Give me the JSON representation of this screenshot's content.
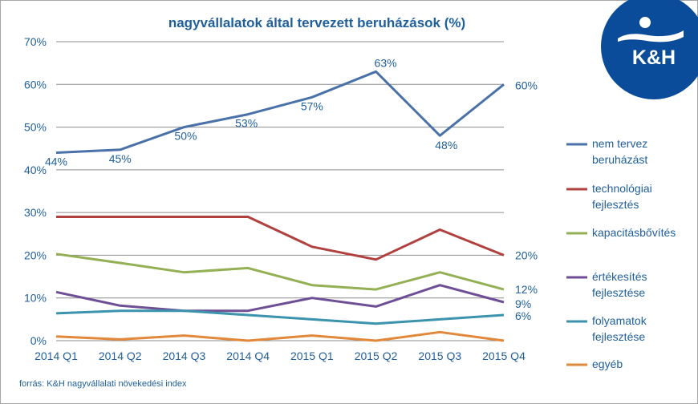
{
  "chart_data": {
    "type": "line",
    "title": "nagyvállalatok által tervezett beruházások (%)",
    "categories": [
      "2014 Q1",
      "2014 Q2",
      "2014 Q3",
      "2014 Q4",
      "2015 Q1",
      "2015 Q2",
      "2015 Q3",
      "2015 Q4"
    ],
    "yticks": [
      "0%",
      "10%",
      "20%",
      "30%",
      "40%",
      "50%",
      "60%",
      "70%"
    ],
    "ylim": [
      0,
      70
    ],
    "grid": true,
    "legend_position": "right",
    "series": [
      {
        "name": "nem tervez beruházást",
        "legend_lines": [
          "nem tervez",
          "beruházást"
        ],
        "color": "#4a72a8",
        "values": [
          44,
          44.7,
          50,
          53,
          57,
          63,
          48,
          60
        ],
        "labels": [
          "44%",
          "45%",
          "50%",
          "53%",
          "57%",
          "63%",
          "48%",
          "60%"
        ]
      },
      {
        "name": "technológiai fejlesztés",
        "legend_lines": [
          "technológiai",
          "fejlesztés"
        ],
        "color": "#b0413e",
        "values": [
          29,
          29,
          29,
          29,
          22,
          19,
          26,
          20
        ],
        "labels": [
          "",
          "",
          "",
          "",
          "",
          "",
          "",
          "20%"
        ]
      },
      {
        "name": "kapacitásbővítés",
        "legend_lines": [
          "kapacitásbővítés"
        ],
        "color": "#93b054",
        "values": [
          20.3,
          18.2,
          16,
          17,
          13,
          12,
          16,
          12
        ],
        "labels": [
          "",
          "",
          "",
          "",
          "",
          "",
          "",
          "12%"
        ]
      },
      {
        "name": "értékesítés fejlesztése",
        "legend_lines": [
          "értékesítés",
          "fejlesztése"
        ],
        "color": "#6e4f96",
        "values": [
          11.4,
          8.2,
          7,
          7,
          10,
          8,
          13,
          9
        ],
        "labels": [
          "",
          "",
          "",
          "",
          "",
          "",
          "",
          "9%"
        ]
      },
      {
        "name": "folyamatok fejlesztése",
        "legend_lines": [
          "folyamatok",
          "fejlesztése"
        ],
        "color": "#3b93ad",
        "values": [
          6.4,
          7,
          7,
          6,
          5,
          4,
          5,
          6
        ],
        "labels": [
          "",
          "",
          "",
          "",
          "",
          "",
          "",
          "6%"
        ]
      },
      {
        "name": "egyéb",
        "legend_lines": [
          "egyéb"
        ],
        "color": "#e2883a",
        "values": [
          1,
          0.3,
          1.2,
          0,
          1.2,
          0,
          2,
          0
        ],
        "labels": [
          "",
          "",
          "",
          "",
          "",
          "",
          "",
          ""
        ]
      }
    ]
  },
  "source_note": "forrás: K&H nagyvállalati növekedési index",
  "logo": {
    "text": "K&H",
    "colors": {
      "blue": "#0a4c9a",
      "white": "#ffffff",
      "text": "#1f5f9c",
      "grid": "#8c8c8c"
    }
  }
}
